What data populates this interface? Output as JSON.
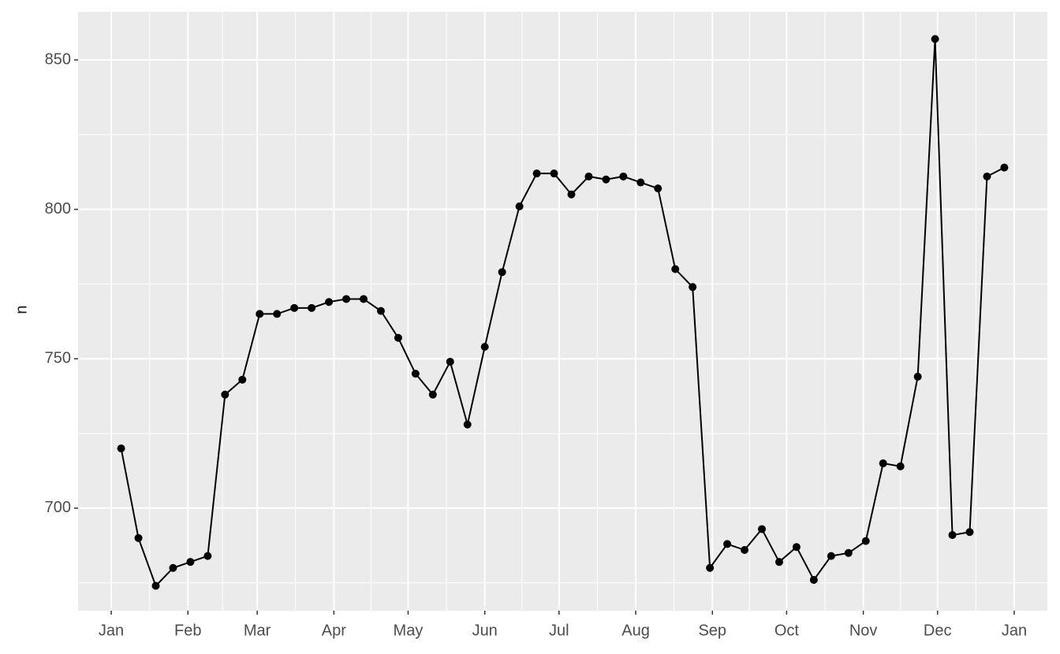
{
  "chart_data": {
    "type": "line",
    "y_label": "n",
    "x": [
      4,
      11,
      18,
      25,
      32,
      39,
      46,
      53,
      60,
      67,
      74,
      81,
      88,
      95,
      102,
      109,
      116,
      123,
      130,
      137,
      144,
      151,
      158,
      165,
      172,
      179,
      186,
      193,
      200,
      207,
      214,
      221,
      228,
      235,
      242,
      249,
      256,
      263,
      270,
      277,
      284,
      291,
      298,
      305,
      312,
      319,
      326,
      333,
      340,
      347,
      354,
      361
    ],
    "series": [
      {
        "color": "#000000",
        "values": [
          720,
          690,
          674,
          680,
          682,
          684,
          738,
          743,
          765,
          765,
          767,
          767,
          769,
          770,
          770,
          766,
          757,
          745,
          738,
          749,
          728,
          754,
          779,
          801,
          812,
          812,
          805,
          811,
          810,
          811,
          809,
          807,
          780,
          774,
          680,
          688,
          686,
          693,
          682,
          687,
          676,
          684,
          685,
          689,
          715,
          714,
          744,
          857,
          691,
          692,
          811,
          814
        ]
      }
    ],
    "xlim": [
      -13.4,
      378.4
    ],
    "ylim": [
      665.7,
      866.1
    ],
    "xticks": [
      {
        "value": 0,
        "label": "Jan"
      },
      {
        "value": 31,
        "label": "Feb"
      },
      {
        "value": 59,
        "label": "Mar"
      },
      {
        "value": 90,
        "label": "Apr"
      },
      {
        "value": 120,
        "label": "May"
      },
      {
        "value": 151,
        "label": "Jun"
      },
      {
        "value": 181,
        "label": "Jul"
      },
      {
        "value": 212,
        "label": "Aug"
      },
      {
        "value": 243,
        "label": "Sep"
      },
      {
        "value": 273,
        "label": "Oct"
      },
      {
        "value": 304,
        "label": "Nov"
      },
      {
        "value": 334,
        "label": "Dec"
      },
      {
        "value": 365,
        "label": "Jan"
      }
    ],
    "yticks": [
      700,
      750,
      800,
      850
    ],
    "grid": true
  }
}
